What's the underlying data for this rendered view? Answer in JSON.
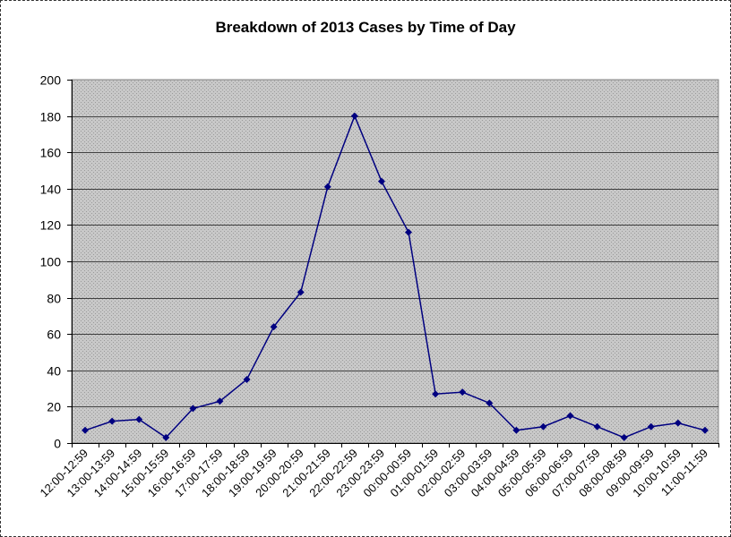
{
  "chart_data": {
    "type": "line",
    "title": "Breakdown of 2013 Cases by Time of Day",
    "xlabel": "",
    "ylabel": "",
    "ylim": [
      0,
      200
    ],
    "yticks": [
      0,
      20,
      40,
      60,
      80,
      100,
      120,
      140,
      160,
      180,
      200
    ],
    "grid": true,
    "legend": null,
    "categories": [
      "12:00-12:59",
      "13:00-13:59",
      "14:00-14:59",
      "15:00-15:59",
      "16:00-16:59",
      "17:00-17:59",
      "18:00-18:59",
      "19:00-19:59",
      "20:00-20:59",
      "21:00-21:59",
      "22:00-22:59",
      "23:00-23:59",
      "00:00-00:59",
      "01:00-01:59",
      "02:00-02:59",
      "03:00-03:59",
      "04:00-04:59",
      "05:00-05:59",
      "06:00-06:59",
      "07:00-07:59",
      "08:00-08:59",
      "09:00-09:59",
      "10:00-10:59",
      "11:00-11:59"
    ],
    "series": [
      {
        "name": "Cases",
        "color": "#000080",
        "marker": "diamond",
        "values": [
          7,
          12,
          13,
          3,
          19,
          23,
          35,
          64,
          83,
          141,
          180,
          144,
          116,
          27,
          28,
          22,
          7,
          9,
          15,
          9,
          3,
          9,
          11,
          7
        ]
      }
    ],
    "colors": {
      "plot_background": "#c0c0c0",
      "gridline": "#404040",
      "line": "#000080"
    }
  }
}
